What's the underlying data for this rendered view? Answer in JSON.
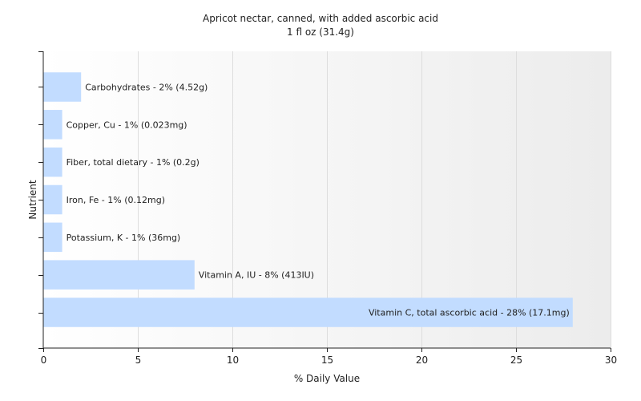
{
  "chart_data": {
    "type": "bar",
    "orientation": "horizontal",
    "title": "Apricot nectar, canned, with added ascorbic acid",
    "subtitle": "1 fl oz (31.4g)",
    "xlabel": "% Daily Value",
    "ylabel": "Nutrient",
    "xlim": [
      0,
      30
    ],
    "xticks": [
      0,
      5,
      10,
      15,
      20,
      25,
      30
    ],
    "grid": true,
    "categories": [
      "Carbohydrates",
      "Copper, Cu",
      "Fiber, total dietary",
      "Iron, Fe",
      "Potassium, K",
      "Vitamin A, IU",
      "Vitamin C, total ascorbic acid"
    ],
    "values": [
      2,
      1,
      1,
      1,
      1,
      8,
      28
    ],
    "data_labels": [
      "Carbohydrates - 2% (4.52g)",
      "Copper, Cu - 1% (0.023mg)",
      "Fiber, total dietary - 1% (0.2g)",
      "Iron, Fe - 1% (0.12mg)",
      "Potassium, K - 1% (36mg)",
      "Vitamin A, IU - 8% (413IU)",
      "Vitamin C, total ascorbic acid - 28% (17.1mg)"
    ],
    "bar_color": "#c2dcff",
    "grid_color": "#dddddd",
    "axis_color": "#222222"
  }
}
